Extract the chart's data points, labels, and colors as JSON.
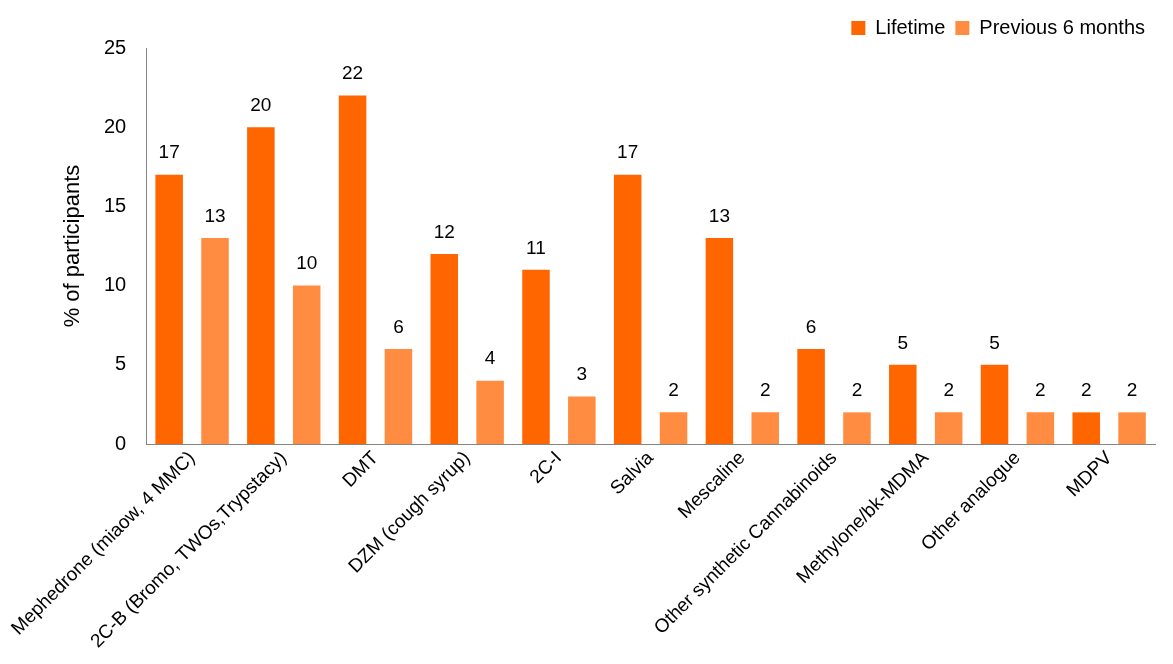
{
  "chart_data": {
    "type": "bar",
    "ylabel": "% of participants",
    "categories": [
      "Mephedrone (miaow, 4 MMC)",
      "2C-B (Bromo, TWOs,Trypstacy)",
      "DMT",
      "DZM (cough syrup)",
      "2C-I",
      "Salvia",
      "Mescaline",
      "Other synthetic Cannabinoids",
      "Methylone/bk-MDMA",
      "Other analogue",
      "MDPV"
    ],
    "series": [
      {
        "name": "Lifetime",
        "color": "#ff6600",
        "values": [
          17,
          20,
          22,
          12,
          11,
          17,
          13,
          6,
          5,
          5,
          2
        ]
      },
      {
        "name": "Previous 6 months",
        "color": "#ff8c40",
        "values": [
          13,
          10,
          6,
          4,
          3,
          2,
          2,
          2,
          2,
          2,
          2
        ]
      }
    ],
    "ylim": [
      0,
      25
    ],
    "yticks": [
      0,
      5,
      10,
      15,
      20,
      25
    ],
    "data_labels": true,
    "legend": "top right",
    "grid": false
  }
}
